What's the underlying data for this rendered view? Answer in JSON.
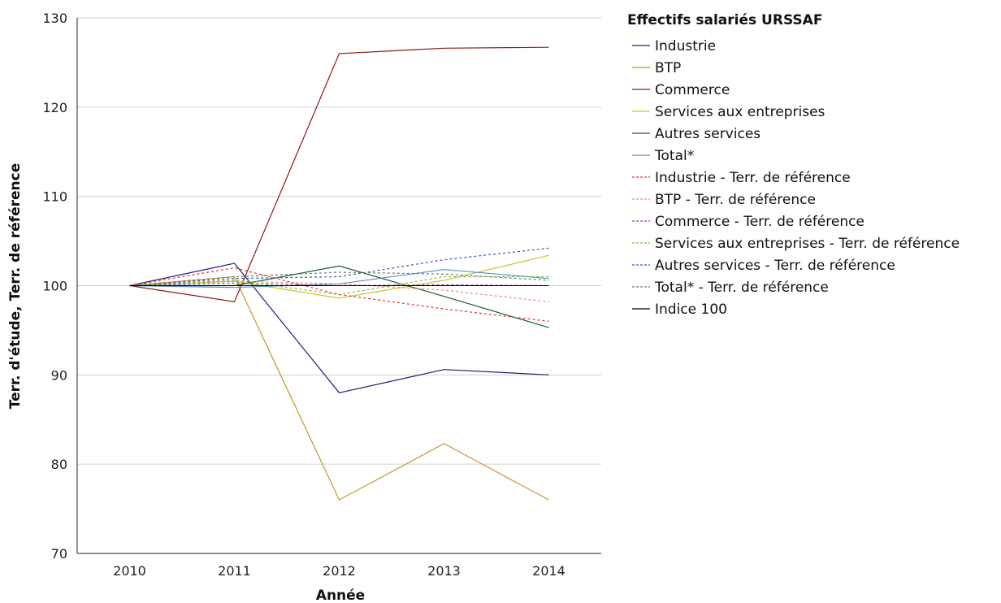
{
  "chart_data": {
    "type": "line",
    "xlabel": "Année",
    "ylabel": "Terr. d'étude, Terr. de référence",
    "legend_title": "Effectifs salariés URSSAF",
    "legend_position": "right",
    "grid": "horizontal",
    "x": [
      "2010",
      "2011",
      "2012",
      "2013",
      "2014"
    ],
    "ylim": [
      70,
      130
    ],
    "yticks": [
      70,
      80,
      90,
      100,
      110,
      120,
      130
    ],
    "series": [
      {
        "name": "Industrie",
        "color": "#1f1f7a",
        "style": "solid",
        "values": [
          100,
          102.5,
          88.0,
          90.6,
          90.0
        ]
      },
      {
        "name": "BTP",
        "color": "#c8962c",
        "style": "solid",
        "values": [
          100,
          101.0,
          76.0,
          82.3,
          76.0
        ]
      },
      {
        "name": "Commerce",
        "color": "#8b1a1a",
        "style": "solid",
        "values": [
          100,
          98.2,
          126.0,
          126.6,
          126.7
        ]
      },
      {
        "name": "Services aux entreprises",
        "color": "#d4c21e",
        "style": "solid",
        "values": [
          100,
          100.5,
          98.6,
          100.6,
          103.4
        ]
      },
      {
        "name": "Autres services",
        "color": "#1d5c3a",
        "style": "solid",
        "values": [
          100,
          100.0,
          102.2,
          98.8,
          95.3
        ]
      },
      {
        "name": "Total*",
        "color": "#5b8fbf",
        "style": "solid",
        "values": [
          100,
          99.8,
          100.2,
          101.8,
          100.8
        ]
      },
      {
        "name": "Industrie - Terr. de référence",
        "color": "#e0342a",
        "style": "dashed",
        "values": [
          100,
          102.0,
          99.0,
          97.4,
          96.0
        ]
      },
      {
        "name": "BTP - Terr. de référence",
        "color": "#f08a7a",
        "style": "dashed",
        "values": [
          100,
          100.5,
          100.2,
          99.5,
          98.2
        ]
      },
      {
        "name": "Commerce - Terr. de référence",
        "color": "#9b3fb0",
        "style": "dashed",
        "values": [
          100,
          100.3,
          100.0,
          100.1,
          100.0
        ]
      },
      {
        "name": "Services aux entreprises - Terr. de référence",
        "color": "#6cc04a",
        "style": "dashed",
        "values": [
          100,
          100.6,
          99.0,
          101.0,
          101.0
        ]
      },
      {
        "name": "Autres services - Terr. de référence",
        "color": "#2f5fb5",
        "style": "dashed",
        "values": [
          100,
          100.8,
          101.0,
          102.9,
          104.2
        ]
      },
      {
        "name": "Total* - Terr. de référence",
        "color": "#777777",
        "style": "dashed",
        "values": [
          100,
          101.0,
          101.5,
          101.3,
          100.6
        ]
      },
      {
        "name": "Indice 100",
        "color": "#000000",
        "style": "solid",
        "values": [
          100,
          100,
          100,
          100,
          100
        ],
        "role": "reference"
      }
    ]
  }
}
